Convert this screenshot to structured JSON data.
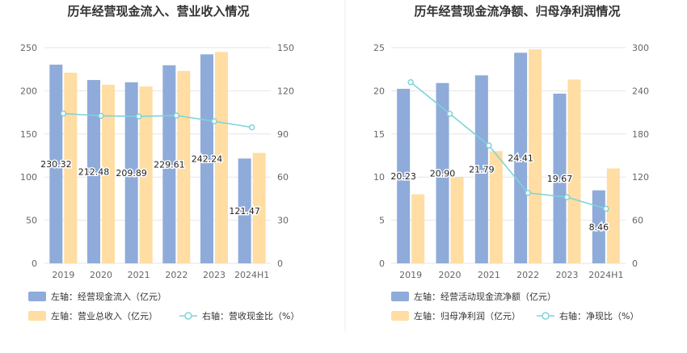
{
  "colors": {
    "bar_left": "#8EABDA",
    "bar_right": "#FFDDA3",
    "line": "#7FD3DA",
    "grid": "#E6E6E6",
    "divider": "#EEEEEE"
  },
  "chart_data": [
    {
      "type": "bar",
      "title": "历年经营现金流入、营业收入情况",
      "categories": [
        "2019",
        "2020",
        "2021",
        "2022",
        "2023",
        "2024H1"
      ],
      "y_left_ticks": [
        "0",
        "50",
        "100",
        "150",
        "200",
        "250"
      ],
      "y_right_ticks": [
        "0",
        "30",
        "60",
        "90",
        "120",
        "150"
      ],
      "ylim_left": [
        0,
        250
      ],
      "ylim_right": [
        0,
        150
      ],
      "series": [
        {
          "name": "左轴：经营现金流入（亿元）",
          "axis": "left",
          "kind": "bar",
          "values": [
            230.32,
            212.48,
            209.89,
            229.61,
            242.24,
            121.47
          ],
          "labels": [
            "230.32",
            "212.48",
            "209.89",
            "229.61",
            "242.24",
            "121.47"
          ]
        },
        {
          "name": "左轴：营业总收入（亿元）",
          "axis": "left",
          "kind": "bar",
          "values": [
            221,
            207,
            205,
            223,
            245,
            128
          ]
        },
        {
          "name": "右轴：营收现金比（%）",
          "axis": "right",
          "kind": "line",
          "values": [
            104.2,
            102.6,
            102.2,
            102.8,
            98.8,
            94.6
          ]
        }
      ],
      "grid": true,
      "legend_position": "bottom"
    },
    {
      "type": "bar",
      "title": "历年经营现金流净额、归母净利润情况",
      "categories": [
        "2019",
        "2020",
        "2021",
        "2022",
        "2023",
        "2024H1"
      ],
      "y_left_ticks": [
        "0",
        "5",
        "10",
        "15",
        "20",
        "25"
      ],
      "y_right_ticks": [
        "0",
        "60",
        "120",
        "180",
        "240",
        "300"
      ],
      "ylim_left": [
        0,
        25
      ],
      "ylim_right": [
        0,
        300
      ],
      "series": [
        {
          "name": "左轴：经营活动现金流净额（亿元）",
          "axis": "left",
          "kind": "bar",
          "values": [
            20.23,
            20.9,
            21.79,
            24.41,
            19.67,
            8.46
          ],
          "labels": [
            "20.23",
            "20.90",
            "21.79",
            "24.41",
            "19.67",
            "8.46"
          ]
        },
        {
          "name": "左轴：归母净利润（亿元）",
          "axis": "left",
          "kind": "bar",
          "values": [
            8.0,
            10.0,
            13.0,
            24.8,
            21.3,
            11.0
          ]
        },
        {
          "name": "右轴：净现比（%）",
          "axis": "right",
          "kind": "line",
          "values": [
            252,
            208,
            164,
            98,
            92,
            76
          ]
        }
      ],
      "grid": true,
      "legend_position": "bottom"
    }
  ]
}
